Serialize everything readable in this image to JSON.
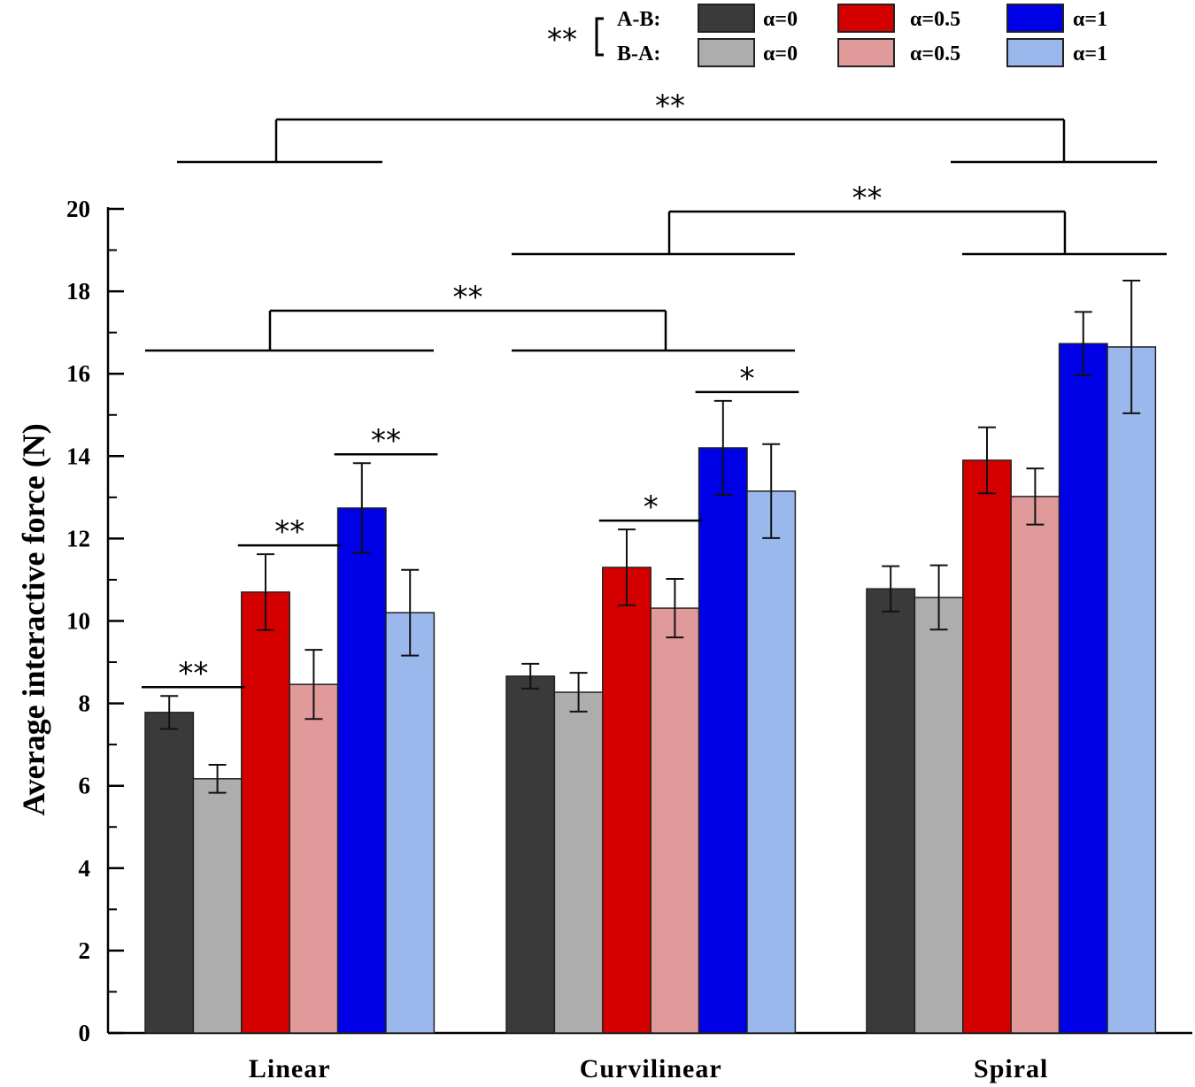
{
  "chart_data": {
    "type": "bar",
    "title": "",
    "xlabel": "",
    "ylabel": "Average interactive force (N)",
    "ylim": [
      0,
      20
    ],
    "yticks": [
      "0",
      "2",
      "4",
      "6",
      "8",
      "10",
      "12",
      "14",
      "16",
      "18",
      "20"
    ],
    "categories": [
      "Linear",
      "Curvilinear",
      "Spiral"
    ],
    "series": [
      {
        "name": "A-B: α=0",
        "color": "#3a3a3a",
        "values": [
          7.78,
          8.66,
          10.78
        ],
        "errors": [
          0.4,
          0.3,
          0.55
        ]
      },
      {
        "name": "B-A: α=0",
        "color": "#adadad",
        "values": [
          6.17,
          8.27,
          10.57
        ],
        "errors": [
          0.34,
          0.47,
          0.78
        ]
      },
      {
        "name": "A-B: α=0.5",
        "color": "#d40000",
        "values": [
          10.7,
          11.3,
          13.9
        ],
        "errors": [
          0.92,
          0.92,
          0.8
        ]
      },
      {
        "name": "B-A: α=0.5",
        "color": "#e09a9a",
        "values": [
          8.46,
          10.31,
          13.02
        ],
        "errors": [
          0.84,
          0.71,
          0.68
        ]
      },
      {
        "name": "A-B: α=1",
        "color": "#0000e6",
        "values": [
          12.74,
          14.2,
          16.73
        ],
        "errors": [
          1.09,
          1.14,
          0.77
        ]
      },
      {
        "name": "B-A: α=1",
        "color": "#9bb8ec",
        "values": [
          10.2,
          13.15,
          16.65
        ],
        "errors": [
          1.04,
          1.14,
          1.61
        ]
      }
    ],
    "legend": {
      "position": "top-right",
      "group_marker": "**",
      "row_labels": [
        "A-B:",
        "B-A:"
      ],
      "entries": [
        [
          "α=0",
          "α=0.5",
          "α=1"
        ],
        [
          "α=0",
          "α=0.5",
          "α=1"
        ]
      ]
    },
    "pairwise_significance": [
      {
        "category": "Linear",
        "pair": [
          0,
          1
        ],
        "label": "**"
      },
      {
        "category": "Linear",
        "pair": [
          2,
          3
        ],
        "label": "**"
      },
      {
        "category": "Linear",
        "pair": [
          4,
          5
        ],
        "label": "**"
      },
      {
        "category": "Curvilinear",
        "pair": [
          2,
          3
        ],
        "label": "*"
      },
      {
        "category": "Curvilinear",
        "pair": [
          4,
          5
        ],
        "label": "*"
      }
    ],
    "group_significance": [
      {
        "groups": [
          "Linear",
          "Curvilinear"
        ],
        "label": "**"
      },
      {
        "groups": [
          "Curvilinear",
          "Spiral"
        ],
        "label": "**"
      },
      {
        "groups": [
          "Linear",
          "Spiral"
        ],
        "label": "**"
      }
    ]
  }
}
